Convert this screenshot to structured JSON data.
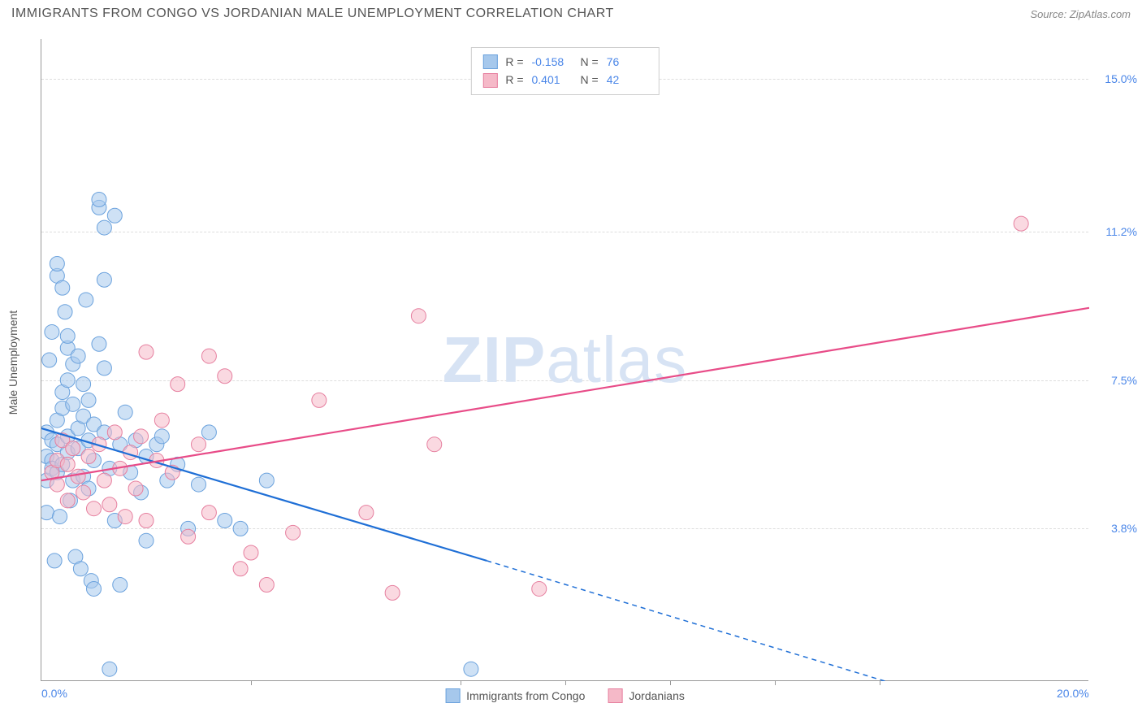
{
  "title": "IMMIGRANTS FROM CONGO VS JORDANIAN MALE UNEMPLOYMENT CORRELATION CHART",
  "source": "Source: ZipAtlas.com",
  "watermark_bold": "ZIP",
  "watermark_light": "atlas",
  "chart": {
    "type": "scatter",
    "background_color": "#ffffff",
    "grid_color": "#dddddd",
    "axis_color": "#999999",
    "tick_label_color": "#4a86e8",
    "xlim": [
      0.0,
      20.0
    ],
    "ylim": [
      0.0,
      16.0
    ],
    "x_ticks": [
      0.0,
      20.0
    ],
    "x_tick_labels": [
      "0.0%",
      "20.0%"
    ],
    "y_gridlines": [
      3.8,
      7.5,
      11.2,
      15.0
    ],
    "y_gridline_labels": [
      "3.8%",
      "7.5%",
      "11.2%",
      "15.0%"
    ],
    "x_minor_ticks": [
      4.0,
      8.0,
      10.0,
      12.0,
      14.0,
      16.0
    ],
    "y_axis_label": "Male Unemployment",
    "marker_radius": 9,
    "marker_opacity": 0.55,
    "line_width": 2.2,
    "series": [
      {
        "name": "Immigrants from Congo",
        "color_fill": "#a6c8ec",
        "color_stroke": "#6ba2dd",
        "R": "-0.158",
        "N": "76",
        "trend": {
          "x1": 0.0,
          "y1": 6.3,
          "x2": 8.5,
          "y2": 3.0,
          "x2_ext": 16.1,
          "y2_ext": 0.0,
          "color": "#1f6fd6"
        },
        "points": [
          [
            0.1,
            6.2
          ],
          [
            0.1,
            5.0
          ],
          [
            0.1,
            4.2
          ],
          [
            0.1,
            5.6
          ],
          [
            0.15,
            8.0
          ],
          [
            0.2,
            8.7
          ],
          [
            0.2,
            6.0
          ],
          [
            0.2,
            5.5
          ],
          [
            0.2,
            5.3
          ],
          [
            0.25,
            3.0
          ],
          [
            0.3,
            10.1
          ],
          [
            0.3,
            10.4
          ],
          [
            0.3,
            6.5
          ],
          [
            0.3,
            5.9
          ],
          [
            0.3,
            5.2
          ],
          [
            0.35,
            4.1
          ],
          [
            0.4,
            9.8
          ],
          [
            0.4,
            7.2
          ],
          [
            0.4,
            6.8
          ],
          [
            0.4,
            5.4
          ],
          [
            0.45,
            9.2
          ],
          [
            0.5,
            8.3
          ],
          [
            0.5,
            8.6
          ],
          [
            0.5,
            7.5
          ],
          [
            0.5,
            6.1
          ],
          [
            0.5,
            5.7
          ],
          [
            0.55,
            4.5
          ],
          [
            0.6,
            7.9
          ],
          [
            0.6,
            6.9
          ],
          [
            0.6,
            5.0
          ],
          [
            0.65,
            3.1
          ],
          [
            0.7,
            8.1
          ],
          [
            0.7,
            6.3
          ],
          [
            0.7,
            5.8
          ],
          [
            0.75,
            2.8
          ],
          [
            0.8,
            7.4
          ],
          [
            0.8,
            6.6
          ],
          [
            0.8,
            5.1
          ],
          [
            0.85,
            9.5
          ],
          [
            0.9,
            7.0
          ],
          [
            0.9,
            6.0
          ],
          [
            0.9,
            4.8
          ],
          [
            0.95,
            2.5
          ],
          [
            1.0,
            2.3
          ],
          [
            1.0,
            6.4
          ],
          [
            1.0,
            5.5
          ],
          [
            1.1,
            8.4
          ],
          [
            1.1,
            11.8
          ],
          [
            1.1,
            12.0
          ],
          [
            1.2,
            11.3
          ],
          [
            1.2,
            10.0
          ],
          [
            1.2,
            7.8
          ],
          [
            1.2,
            6.2
          ],
          [
            1.3,
            5.3
          ],
          [
            1.4,
            11.6
          ],
          [
            1.4,
            4.0
          ],
          [
            1.5,
            2.4
          ],
          [
            1.5,
            5.9
          ],
          [
            1.6,
            6.7
          ],
          [
            1.7,
            5.2
          ],
          [
            1.8,
            6.0
          ],
          [
            1.9,
            4.7
          ],
          [
            2.0,
            5.6
          ],
          [
            2.0,
            3.5
          ],
          [
            2.2,
            5.9
          ],
          [
            2.3,
            6.1
          ],
          [
            2.4,
            5.0
          ],
          [
            2.6,
            5.4
          ],
          [
            2.8,
            3.8
          ],
          [
            3.0,
            4.9
          ],
          [
            3.2,
            6.2
          ],
          [
            3.5,
            4.0
          ],
          [
            3.8,
            3.8
          ],
          [
            4.3,
            5.0
          ],
          [
            1.3,
            0.3
          ],
          [
            8.2,
            0.3
          ]
        ]
      },
      {
        "name": "Jordanians",
        "color_fill": "#f5b9c8",
        "color_stroke": "#e67f9f",
        "R": "0.401",
        "N": "42",
        "trend": {
          "x1": 0.0,
          "y1": 5.0,
          "x2": 20.0,
          "y2": 9.3,
          "color": "#e84c88"
        },
        "points": [
          [
            0.2,
            5.2
          ],
          [
            0.3,
            5.5
          ],
          [
            0.3,
            4.9
          ],
          [
            0.4,
            6.0
          ],
          [
            0.5,
            5.4
          ],
          [
            0.5,
            4.5
          ],
          [
            0.6,
            5.8
          ],
          [
            0.7,
            5.1
          ],
          [
            0.8,
            4.7
          ],
          [
            0.9,
            5.6
          ],
          [
            1.0,
            4.3
          ],
          [
            1.1,
            5.9
          ],
          [
            1.2,
            5.0
          ],
          [
            1.3,
            4.4
          ],
          [
            1.4,
            6.2
          ],
          [
            1.5,
            5.3
          ],
          [
            1.6,
            4.1
          ],
          [
            1.7,
            5.7
          ],
          [
            1.8,
            4.8
          ],
          [
            1.9,
            6.1
          ],
          [
            2.0,
            8.2
          ],
          [
            2.0,
            4.0
          ],
          [
            2.2,
            5.5
          ],
          [
            2.3,
            6.5
          ],
          [
            2.5,
            5.2
          ],
          [
            2.6,
            7.4
          ],
          [
            2.8,
            3.6
          ],
          [
            3.0,
            5.9
          ],
          [
            3.2,
            8.1
          ],
          [
            3.2,
            4.2
          ],
          [
            3.5,
            7.6
          ],
          [
            3.8,
            2.8
          ],
          [
            4.0,
            3.2
          ],
          [
            4.3,
            2.4
          ],
          [
            4.8,
            3.7
          ],
          [
            5.3,
            7.0
          ],
          [
            6.2,
            4.2
          ],
          [
            6.7,
            2.2
          ],
          [
            7.2,
            9.1
          ],
          [
            7.5,
            5.9
          ],
          [
            9.5,
            2.3
          ],
          [
            18.7,
            11.4
          ]
        ]
      }
    ]
  }
}
